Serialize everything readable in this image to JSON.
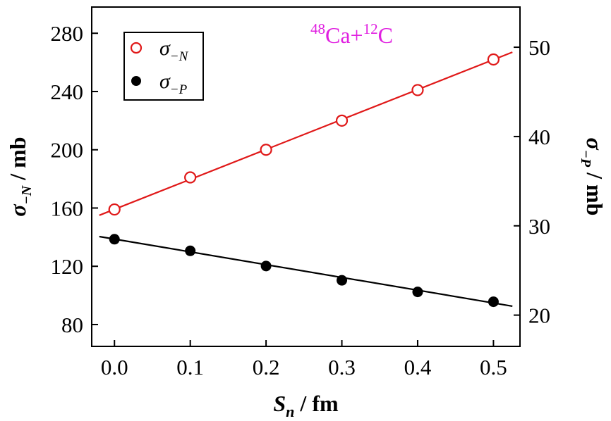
{
  "chart_data": {
    "type": "scatter",
    "annotation": {
      "parts": [
        {
          "text": "48",
          "sup": true
        },
        {
          "text": "Ca+",
          "sup": false
        },
        {
          "text": "12",
          "sup": true
        },
        {
          "text": "C",
          "sup": false
        }
      ],
      "color": "#e020e0"
    },
    "x_axis": {
      "label_base": "S",
      "label_sub": "n",
      "label_rest": " / fm",
      "range": [
        -0.03,
        0.535
      ],
      "ticks": [
        "0.0",
        "0.1",
        "0.2",
        "0.3",
        "0.4",
        "0.5"
      ]
    },
    "y_axis_left": {
      "label_base": "σ",
      "label_sub": "−N",
      "label_rest": " / mb",
      "range": [
        65,
        298
      ],
      "ticks": [
        "80",
        "120",
        "160",
        "200",
        "240",
        "280"
      ]
    },
    "y_axis_right": {
      "label_base": "σ",
      "label_sub": "−P",
      "label_rest": " / mb",
      "range": [
        16.5,
        54.5
      ],
      "ticks": [
        "20",
        "30",
        "40",
        "50"
      ]
    },
    "series": [
      {
        "name_base": "σ",
        "name_sub": "−N",
        "axis": "left",
        "marker": "open-circle",
        "color": "#e01818",
        "x": [
          0.0,
          0.1,
          0.2,
          0.3,
          0.4,
          0.5
        ],
        "y": [
          159,
          181,
          200,
          220,
          241,
          262
        ],
        "fit": {
          "x": [
            -0.02,
            0.525
          ],
          "y": [
            155,
            267
          ]
        }
      },
      {
        "name_base": "σ",
        "name_sub": "−P",
        "axis": "right",
        "marker": "filled-circle",
        "color": "#000000",
        "x": [
          0.0,
          0.1,
          0.2,
          0.3,
          0.4,
          0.5
        ],
        "y": [
          28.5,
          27.2,
          25.5,
          23.9,
          22.6,
          21.5
        ],
        "fit": {
          "x": [
            -0.02,
            0.525
          ],
          "y": [
            28.8,
            21.0
          ]
        }
      }
    ],
    "legend": "top-left",
    "grid": false
  }
}
